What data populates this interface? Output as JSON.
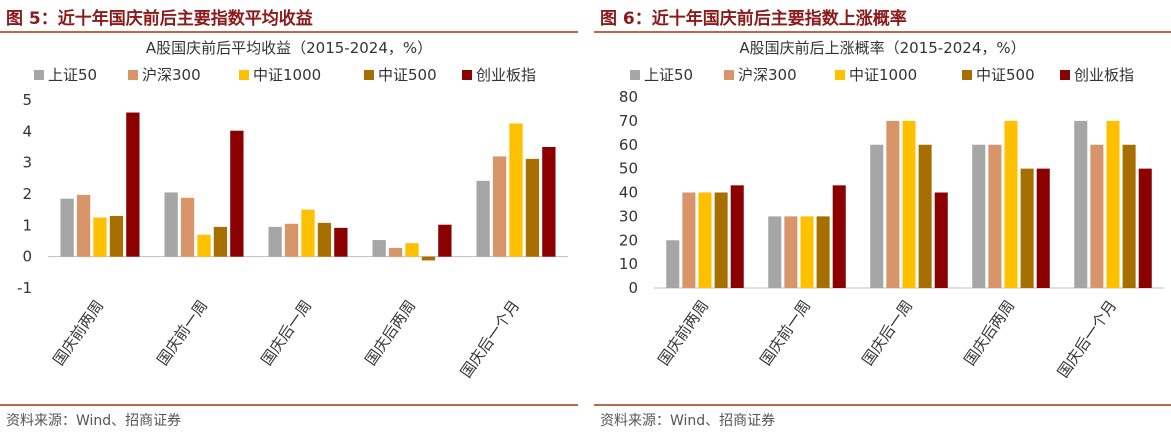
{
  "figures": [
    {
      "figure_title": "图 5：近十年国庆前后主要指数平均收益",
      "source": "资料来源：Wind、招商证券"
    },
    {
      "figure_title": "图 6：近十年国庆前后主要指数上涨概率",
      "source": "资料来源：Wind、招商证券"
    }
  ],
  "chart_data": [
    {
      "type": "bar",
      "title": "A股国庆前后平均收益（2015-2024，%）",
      "categories": [
        "国庆前两周",
        "国庆前一周",
        "国庆后一周",
        "国庆后两周",
        "国庆后一个月"
      ],
      "series": [
        {
          "name": "上证50",
          "color": "#a6a6a6",
          "values": [
            1.85,
            2.05,
            0.95,
            0.53,
            2.42
          ]
        },
        {
          "name": "沪深300",
          "color": "#d9956a",
          "values": [
            1.97,
            1.88,
            1.05,
            0.28,
            3.2
          ]
        },
        {
          "name": "中证1000",
          "color": "#ffc000",
          "values": [
            1.25,
            0.7,
            1.5,
            0.43,
            4.25
          ]
        },
        {
          "name": "中证500",
          "color": "#a76f00",
          "values": [
            1.3,
            0.95,
            1.08,
            -0.12,
            3.12
          ]
        },
        {
          "name": "创业板指",
          "color": "#8b0000",
          "values": [
            4.6,
            4.02,
            0.92,
            1.02,
            3.5
          ]
        }
      ],
      "ylim": [
        -1,
        5
      ],
      "yticks": [
        -1,
        0,
        1,
        2,
        3,
        4,
        5
      ],
      "legend": "top",
      "grid": false
    },
    {
      "type": "bar",
      "title": "A股国庆前后上涨概率（2015-2024，%）",
      "categories": [
        "国庆前两周",
        "国庆前一周",
        "国庆后一周",
        "国庆后两周",
        "国庆后一个月"
      ],
      "series": [
        {
          "name": "上证50",
          "color": "#a6a6a6",
          "values": [
            20,
            30,
            60,
            60,
            70
          ]
        },
        {
          "name": "沪深300",
          "color": "#d9956a",
          "values": [
            40,
            30,
            70,
            60,
            60
          ]
        },
        {
          "name": "中证1000",
          "color": "#ffc000",
          "values": [
            40,
            30,
            70,
            70,
            70
          ]
        },
        {
          "name": "中证500",
          "color": "#a76f00",
          "values": [
            40,
            30,
            60,
            50,
            60
          ]
        },
        {
          "name": "创业板指",
          "color": "#8b0000",
          "values": [
            43,
            43,
            40,
            50,
            50
          ]
        }
      ],
      "ylim": [
        0,
        80
      ],
      "yticks": [
        0,
        10,
        20,
        30,
        40,
        50,
        60,
        70,
        80
      ],
      "legend": "top",
      "grid": false
    }
  ]
}
